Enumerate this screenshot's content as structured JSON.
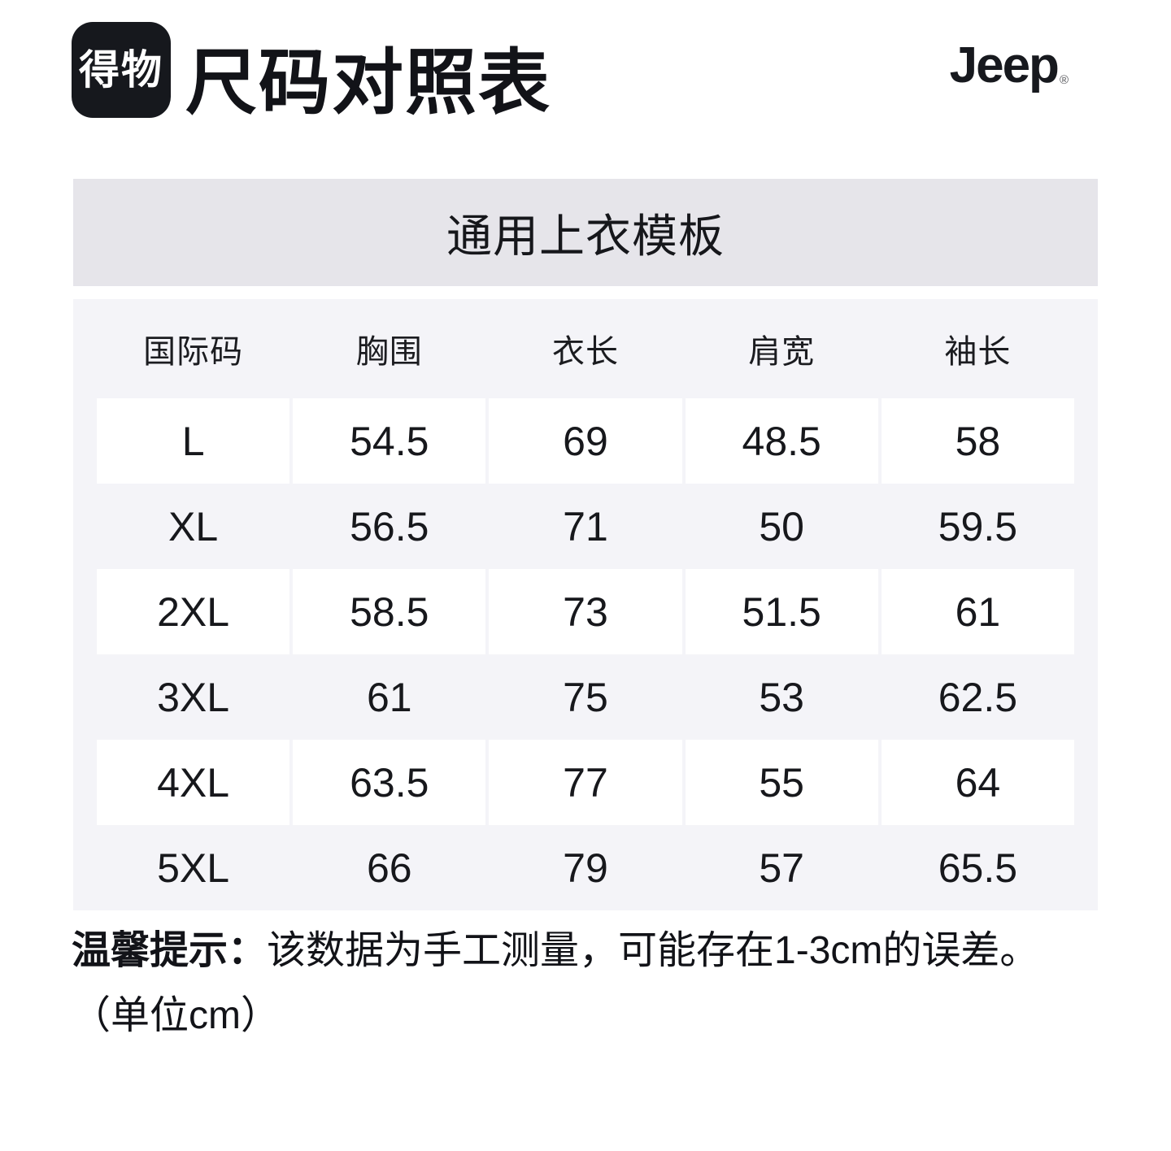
{
  "header": {
    "app_logo_text": "得物",
    "page_title": "尺码对照表",
    "brand_logo_text": "Jeep",
    "brand_registered_mark": "®"
  },
  "chart_data": {
    "type": "table",
    "title": "通用上衣模板",
    "columns": [
      "国际码",
      "胸围",
      "衣长",
      "肩宽",
      "袖长"
    ],
    "rows": [
      [
        "L",
        "54.5",
        "69",
        "48.5",
        "58"
      ],
      [
        "XL",
        "56.5",
        "71",
        "50",
        "59.5"
      ],
      [
        "2XL",
        "58.5",
        "73",
        "51.5",
        "61"
      ],
      [
        "3XL",
        "61",
        "75",
        "53",
        "62.5"
      ],
      [
        "4XL",
        "63.5",
        "77",
        "55",
        "64"
      ],
      [
        "5XL",
        "66",
        "79",
        "57",
        "65.5"
      ]
    ],
    "unit": "cm",
    "layout_hints": {
      "striped_rows": "odd rows white on light-gray background",
      "columns_equal_width": true
    }
  },
  "footnote": {
    "bold_label": "温馨提示：",
    "text": "该数据为手工测量，可能存在1-3cm的误差。",
    "unit_note": "（单位cm）"
  },
  "colors": {
    "page_bg": "#ffffff",
    "app_logo_bg": "#16181d",
    "banner_bg": "#e6e5ea",
    "table_bg": "#f4f4f8",
    "striped_cell_bg": "#ffffff",
    "text": "#17181c"
  }
}
